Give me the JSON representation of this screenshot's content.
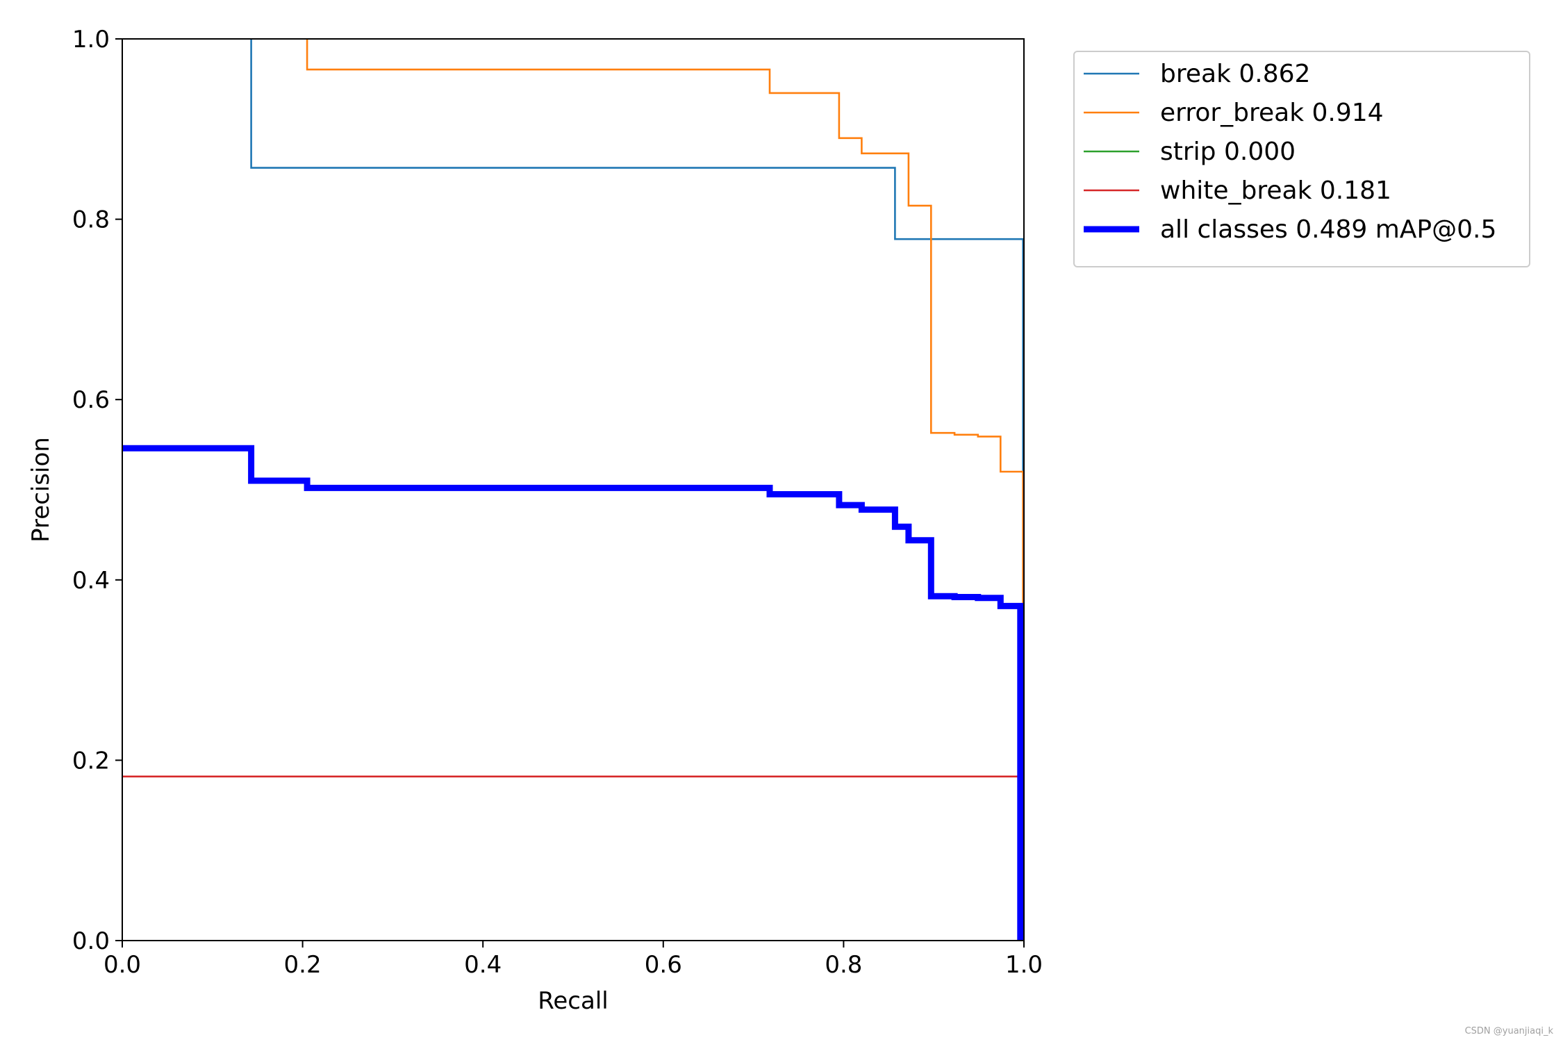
{
  "chart_data": {
    "type": "line",
    "xlabel": "Recall",
    "ylabel": "Precision",
    "xlim": [
      0,
      1
    ],
    "ylim": [
      0,
      1
    ],
    "x_ticks": [
      "0.0",
      "0.2",
      "0.4",
      "0.6",
      "0.8",
      "1.0"
    ],
    "y_ticks": [
      "0.0",
      "0.2",
      "0.4",
      "0.6",
      "0.8",
      "1.0"
    ],
    "grid": false,
    "legend_position": "outside-top-right",
    "series": [
      {
        "name": "break 0.862",
        "color": "#1f77b4",
        "linewidth": "thin",
        "points": [
          [
            0.143,
            1.0
          ],
          [
            0.143,
            0.857
          ],
          [
            0.857,
            0.857
          ],
          [
            0.857,
            0.778
          ],
          [
            0.999,
            0.778
          ],
          [
            0.999,
            0.0
          ]
        ]
      },
      {
        "name": "error_break 0.914",
        "color": "#ff7f0e",
        "linewidth": "thin",
        "points": [
          [
            0.205,
            1.0
          ],
          [
            0.205,
            0.966
          ],
          [
            0.718,
            0.966
          ],
          [
            0.718,
            0.94
          ],
          [
            0.795,
            0.94
          ],
          [
            0.795,
            0.89
          ],
          [
            0.82,
            0.89
          ],
          [
            0.82,
            0.873
          ],
          [
            0.872,
            0.873
          ],
          [
            0.872,
            0.815
          ],
          [
            0.897,
            0.815
          ],
          [
            0.897,
            0.563
          ],
          [
            0.923,
            0.563
          ],
          [
            0.923,
            0.561
          ],
          [
            0.949,
            0.561
          ],
          [
            0.949,
            0.559
          ],
          [
            0.974,
            0.559
          ],
          [
            0.974,
            0.52
          ],
          [
            0.999,
            0.52
          ],
          [
            0.999,
            0.37
          ]
        ]
      },
      {
        "name": "strip 0.000",
        "color": "#2ca02c",
        "linewidth": "thin",
        "points": []
      },
      {
        "name": "white_break 0.181",
        "color": "#d62728",
        "linewidth": "thin",
        "points": [
          [
            0.0,
            0.182
          ],
          [
            0.999,
            0.182
          ],
          [
            0.999,
            0.0
          ]
        ]
      },
      {
        "name": "all classes 0.489 mAP@0.5",
        "color": "#0000ff",
        "linewidth": "thick",
        "points": [
          [
            0.0,
            0.546
          ],
          [
            0.143,
            0.546
          ],
          [
            0.143,
            0.51
          ],
          [
            0.205,
            0.51
          ],
          [
            0.205,
            0.502
          ],
          [
            0.718,
            0.502
          ],
          [
            0.718,
            0.495
          ],
          [
            0.795,
            0.495
          ],
          [
            0.795,
            0.483
          ],
          [
            0.82,
            0.483
          ],
          [
            0.82,
            0.478
          ],
          [
            0.857,
            0.478
          ],
          [
            0.857,
            0.459
          ],
          [
            0.872,
            0.459
          ],
          [
            0.872,
            0.444
          ],
          [
            0.897,
            0.444
          ],
          [
            0.897,
            0.382
          ],
          [
            0.923,
            0.382
          ],
          [
            0.923,
            0.381
          ],
          [
            0.949,
            0.381
          ],
          [
            0.949,
            0.38
          ],
          [
            0.974,
            0.38
          ],
          [
            0.974,
            0.371
          ],
          [
            0.996,
            0.371
          ],
          [
            0.996,
            0.0
          ]
        ]
      }
    ]
  },
  "watermark": "CSDN @yuanjiaqi_k"
}
